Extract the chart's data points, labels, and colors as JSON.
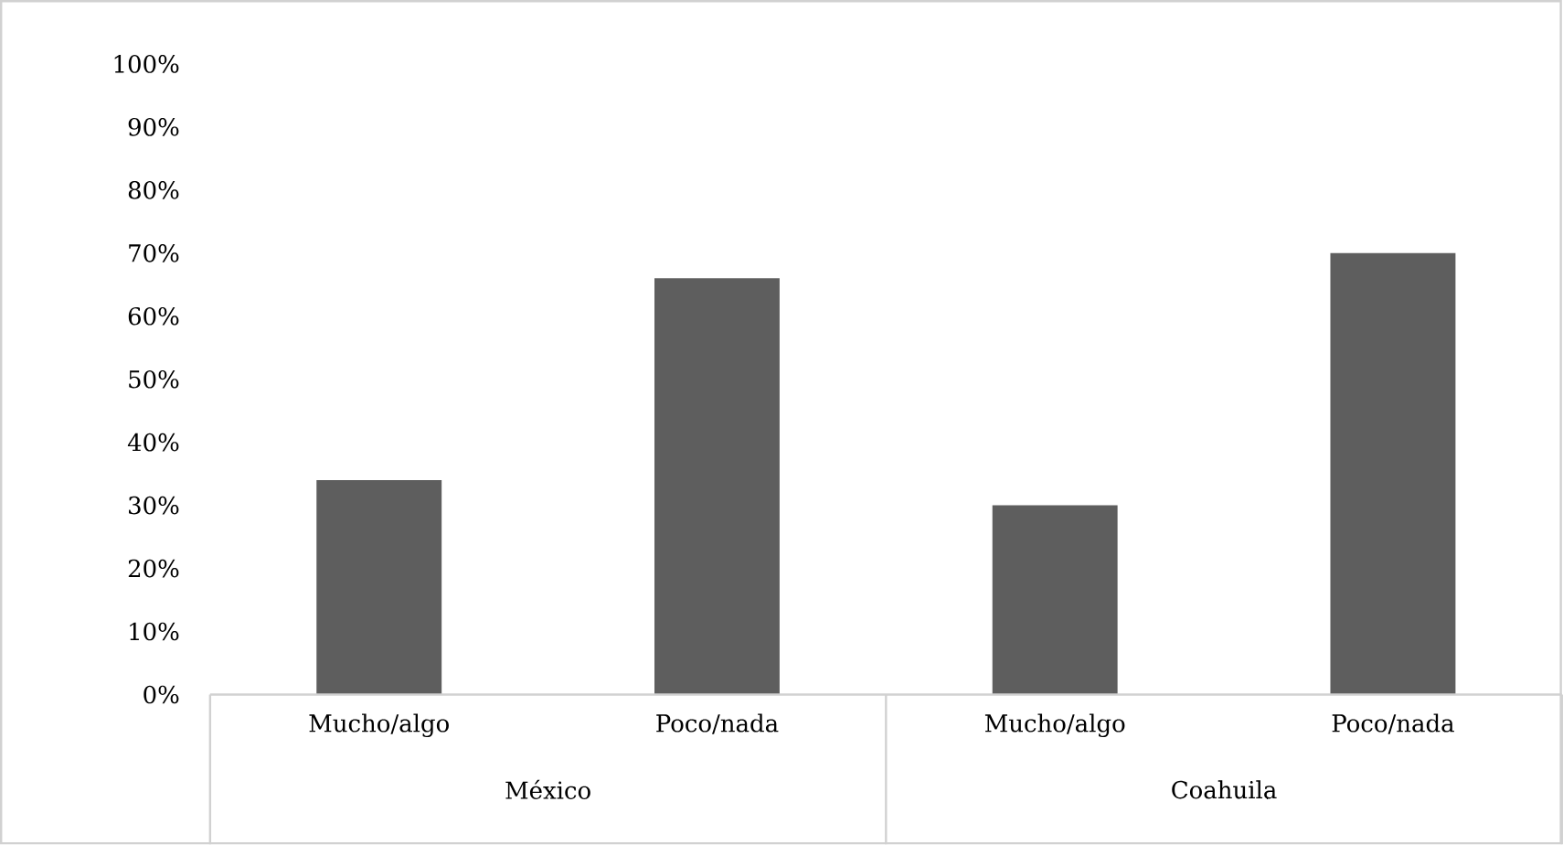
{
  "chart_data": {
    "type": "bar",
    "categories": [
      "Mucho/algo",
      "Poco/nada",
      "Mucho/algo",
      "Poco/nada"
    ],
    "values": [
      34,
      66,
      30,
      70
    ],
    "color": "#5e5e5e",
    "ylim": [
      0,
      100
    ],
    "yticks": [
      {
        "value": 0,
        "label": "0%"
      },
      {
        "value": 10,
        "label": "10%"
      },
      {
        "value": 20,
        "label": "20%"
      },
      {
        "value": 30,
        "label": "30%"
      },
      {
        "value": 40,
        "label": "40%"
      },
      {
        "value": 50,
        "label": "50%"
      },
      {
        "value": 60,
        "label": "60%"
      },
      {
        "value": 70,
        "label": "70%"
      },
      {
        "value": 80,
        "label": "80%"
      },
      {
        "value": 90,
        "label": "90%"
      },
      {
        "value": 100,
        "label": "100%"
      }
    ],
    "annotations": [
      "México",
      "Coahuila"
    ],
    "grid": false
  }
}
